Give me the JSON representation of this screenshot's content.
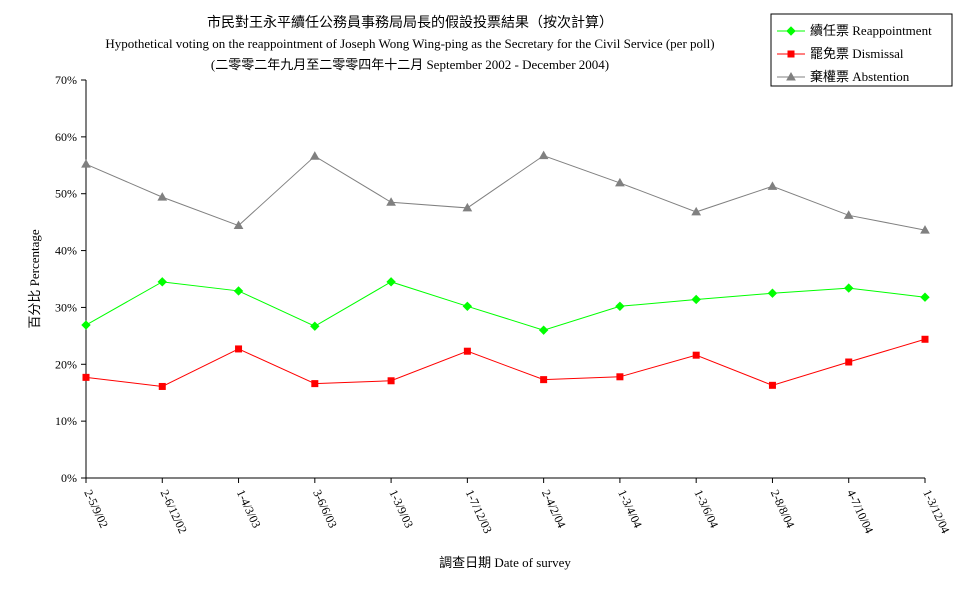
{
  "chart_data": {
    "type": "line",
    "title_lines": [
      "市民對王永平續任公務員事務局局長的假設投票結果（按次計算）",
      "Hypothetical voting on the reappointment of Joseph Wong Wing-ping as the Secretary for the Civil Service (per poll)",
      "(二零零二年九月至二零零四年十二月 September 2002 - December 2004)"
    ],
    "xlabel": "調查日期 Date of survey",
    "ylabel": "百分比 Percentage",
    "ylim": [
      0,
      70
    ],
    "yticks": [
      "0%",
      "10%",
      "20%",
      "30%",
      "40%",
      "50%",
      "60%",
      "70%"
    ],
    "grid": false,
    "legend_position": "top-right",
    "categories": [
      "2-5/9/02",
      "2-6/12/02",
      "1-4/3/03",
      "3-6/6/03",
      "1-3/9/03",
      "1-7/12/03",
      "2-4/2/04",
      "1-3/4/04",
      "1-3/6/04",
      "2-8/8/04",
      "4-7/10/04",
      "1-3/12/04"
    ],
    "series": [
      {
        "name": "續任票 Reappointment",
        "color": "#00ff00",
        "marker": "diamond",
        "values": [
          26.9,
          34.5,
          32.9,
          26.7,
          34.5,
          30.2,
          26.0,
          30.2,
          31.4,
          32.5,
          33.4,
          31.8
        ]
      },
      {
        "name": "罷免票 Dismissal",
        "color": "#ff0000",
        "marker": "square",
        "values": [
          17.7,
          16.1,
          22.7,
          16.6,
          17.1,
          22.3,
          17.3,
          17.8,
          21.6,
          16.3,
          20.4,
          24.4
        ]
      },
      {
        "name": "棄權票 Abstention",
        "color": "#808080",
        "marker": "triangle",
        "values": [
          55.2,
          49.4,
          44.4,
          56.6,
          48.5,
          47.5,
          56.7,
          51.9,
          46.8,
          51.3,
          46.2,
          43.6
        ]
      }
    ]
  }
}
